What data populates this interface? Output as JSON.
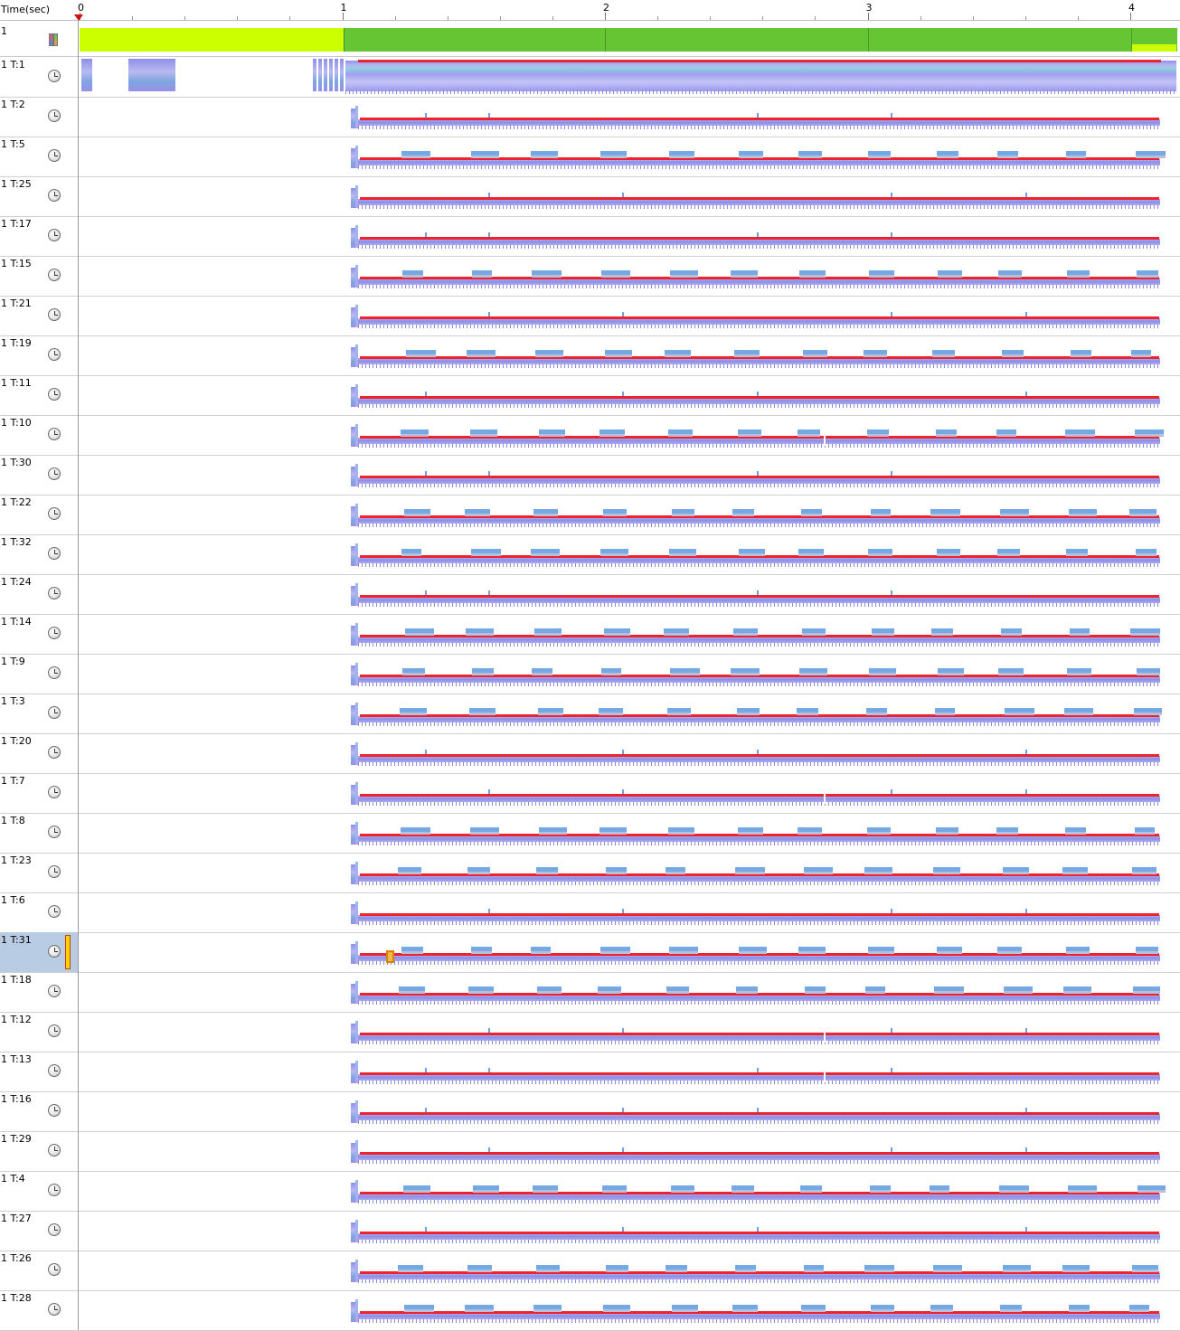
{
  "header": {
    "time_label": "Time(sec)",
    "ticks": [
      "0",
      "1",
      "2",
      "3",
      "4"
    ]
  },
  "process": {
    "label": "1",
    "icon": "cpu-bars-icon",
    "colors": {
      "idle": "#ccff00",
      "busy": "#66c532"
    }
  },
  "threads": [
    {
      "label": "1 T:1",
      "pattern": "main"
    },
    {
      "label": "1 T:2",
      "pattern": "sparse"
    },
    {
      "label": "1 T:5",
      "pattern": "dense"
    },
    {
      "label": "1 T:25",
      "pattern": "sparse"
    },
    {
      "label": "1 T:17",
      "pattern": "sparse"
    },
    {
      "label": "1 T:15",
      "pattern": "dense"
    },
    {
      "label": "1 T:21",
      "pattern": "sparse"
    },
    {
      "label": "1 T:19",
      "pattern": "dense"
    },
    {
      "label": "1 T:11",
      "pattern": "sparse"
    },
    {
      "label": "1 T:10",
      "pattern": "dense"
    },
    {
      "label": "1 T:30",
      "pattern": "sparse"
    },
    {
      "label": "1 T:22",
      "pattern": "dense"
    },
    {
      "label": "1 T:32",
      "pattern": "dense"
    },
    {
      "label": "1 T:24",
      "pattern": "sparse"
    },
    {
      "label": "1 T:14",
      "pattern": "dense"
    },
    {
      "label": "1 T:9",
      "pattern": "dense"
    },
    {
      "label": "1 T:3",
      "pattern": "dense"
    },
    {
      "label": "1 T:20",
      "pattern": "sparse"
    },
    {
      "label": "1 T:7",
      "pattern": "sparse"
    },
    {
      "label": "1 T:8",
      "pattern": "dense"
    },
    {
      "label": "1 T:23",
      "pattern": "dense"
    },
    {
      "label": "1 T:6",
      "pattern": "sparse"
    },
    {
      "label": "1 T:31",
      "pattern": "dense",
      "selected": true
    },
    {
      "label": "1 T:18",
      "pattern": "dense"
    },
    {
      "label": "1 T:12",
      "pattern": "sparse"
    },
    {
      "label": "1 T:13",
      "pattern": "sparse"
    },
    {
      "label": "1 T:16",
      "pattern": "sparse"
    },
    {
      "label": "1 T:29",
      "pattern": "sparse"
    },
    {
      "label": "1 T:4",
      "pattern": "dense"
    },
    {
      "label": "1 T:27",
      "pattern": "sparse"
    },
    {
      "label": "1 T:26",
      "pattern": "dense"
    },
    {
      "label": "1 T:28",
      "pattern": "dense"
    }
  ],
  "icons": {
    "thread": "clock-icon",
    "time_marker": "time-marker-icon"
  }
}
